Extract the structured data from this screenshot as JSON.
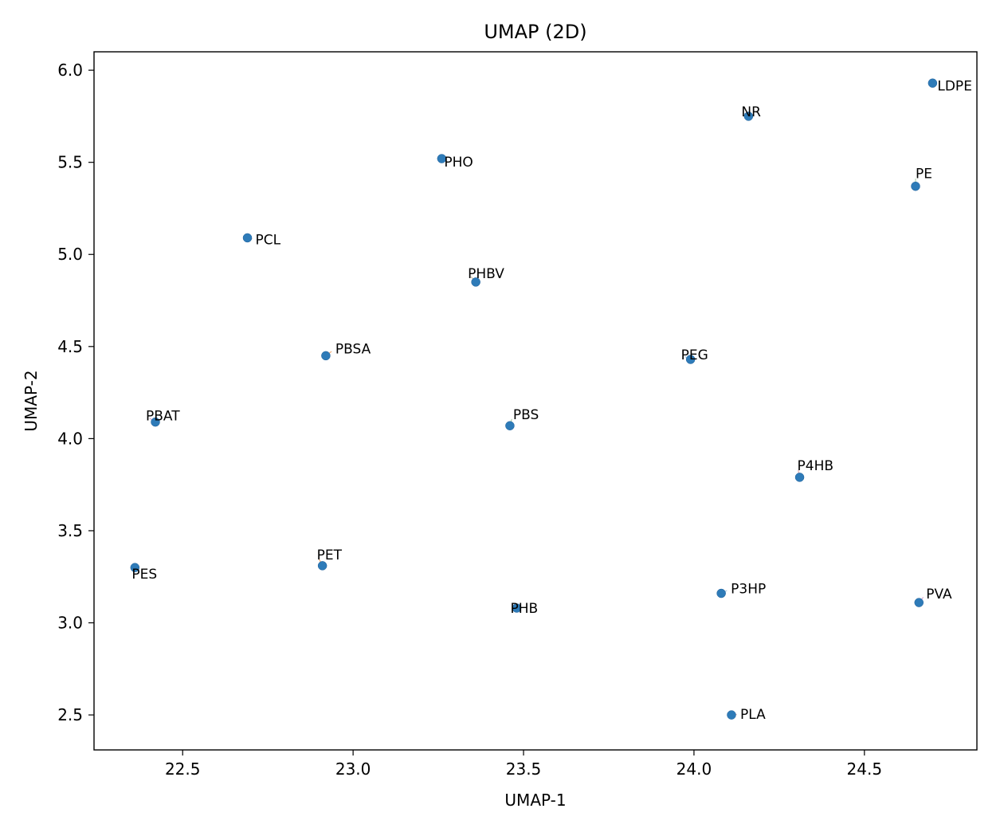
{
  "chart_data": {
    "type": "scatter",
    "title": "UMAP (2D)",
    "xlabel": "UMAP-1",
    "ylabel": "UMAP-2",
    "xlim": [
      22.24,
      24.83
    ],
    "ylim": [
      2.31,
      6.1
    ],
    "xticks": [
      "22.5",
      "23.0",
      "23.5",
      "24.0",
      "24.5"
    ],
    "yticks": [
      "2.5",
      "3.0",
      "3.5",
      "4.0",
      "4.5",
      "5.0",
      "5.5",
      "6.0"
    ],
    "grid": false,
    "point_color": "#2e7bb8",
    "points": [
      {
        "label": "LDPE",
        "x": 24.7,
        "y": 5.93
      },
      {
        "label": "NR",
        "x": 24.16,
        "y": 5.75
      },
      {
        "label": "PHO",
        "x": 23.26,
        "y": 5.52
      },
      {
        "label": "PE",
        "x": 24.65,
        "y": 5.37
      },
      {
        "label": "PCL",
        "x": 22.69,
        "y": 5.09
      },
      {
        "label": "PHBV",
        "x": 23.36,
        "y": 4.85
      },
      {
        "label": "PBSA",
        "x": 22.92,
        "y": 4.45
      },
      {
        "label": "PEG",
        "x": 23.99,
        "y": 4.43
      },
      {
        "label": "PBAT",
        "x": 22.42,
        "y": 4.09
      },
      {
        "label": "PBS",
        "x": 23.46,
        "y": 4.07
      },
      {
        "label": "P4HB",
        "x": 24.31,
        "y": 3.79
      },
      {
        "label": "PES",
        "x": 22.36,
        "y": 3.3
      },
      {
        "label": "PET",
        "x": 22.91,
        "y": 3.31
      },
      {
        "label": "P3HP",
        "x": 24.08,
        "y": 3.16
      },
      {
        "label": "PVA",
        "x": 24.66,
        "y": 3.11
      },
      {
        "label": "PHB",
        "x": 23.48,
        "y": 3.08
      },
      {
        "label": "PLA",
        "x": 24.11,
        "y": 2.5
      }
    ]
  }
}
